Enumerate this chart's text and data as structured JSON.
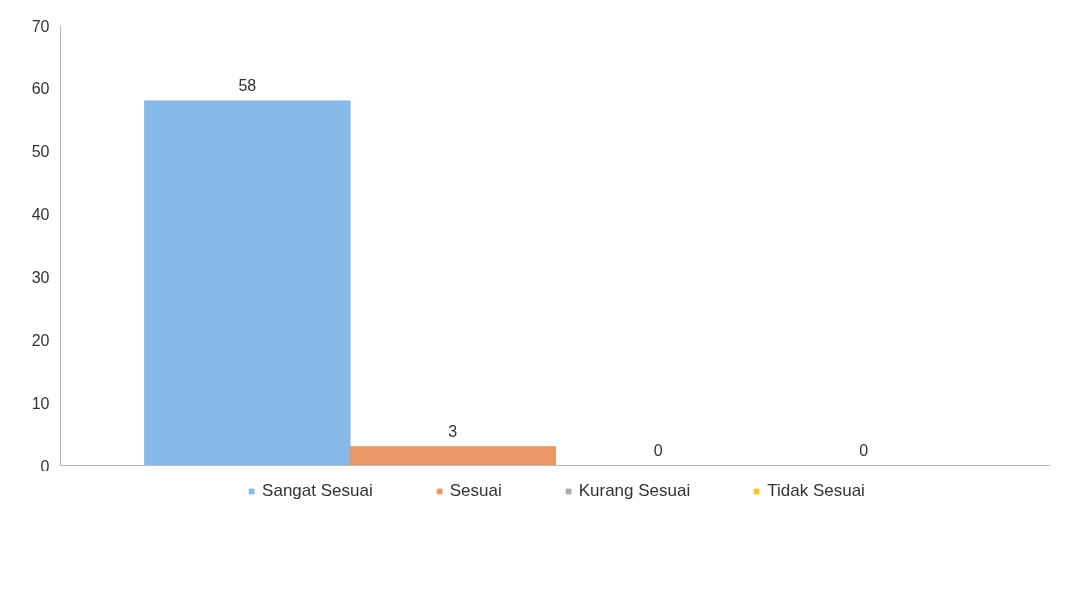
{
  "chart_data": {
    "type": "bar",
    "categories": [
      null
    ],
    "series": [
      {
        "name": "Sangat Sesuai",
        "color": "#86b8e8",
        "values": [
          58
        ]
      },
      {
        "name": "Sesuai",
        "color": "#eb9666",
        "values": [
          3
        ]
      },
      {
        "name": "Kurang Sesuai",
        "color": "#a8a8b0",
        "values": [
          0
        ]
      },
      {
        "name": "Tidak Sesuai",
        "color": "#f5c518",
        "values": [
          0
        ]
      }
    ],
    "ylim": [
      0,
      70
    ],
    "yticks": [
      0,
      10,
      20,
      30,
      40,
      50,
      60,
      70
    ],
    "data_labels": true,
    "legend": "bottom",
    "tick_labels": "y"
  }
}
